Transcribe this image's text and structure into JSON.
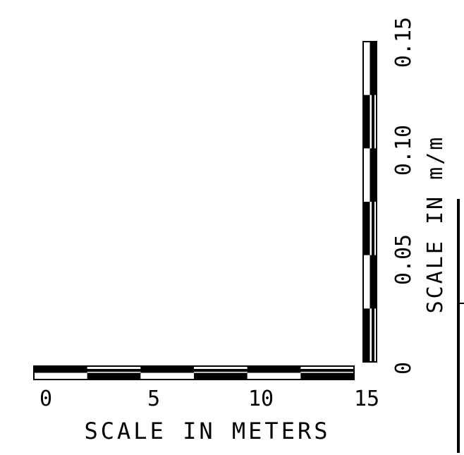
{
  "horizontal_scale": {
    "title": "SCALE IN METERS",
    "tick_labels": [
      "0",
      "5",
      "10",
      "15"
    ],
    "segments": 6
  },
  "vertical_scale": {
    "title": "SCALE IN m/m",
    "tick_labels": [
      "0",
      "0.05",
      "0.10",
      "0.15"
    ],
    "segments": 6
  },
  "colors": {
    "ink": "#000000",
    "paper": "#ffffff"
  }
}
